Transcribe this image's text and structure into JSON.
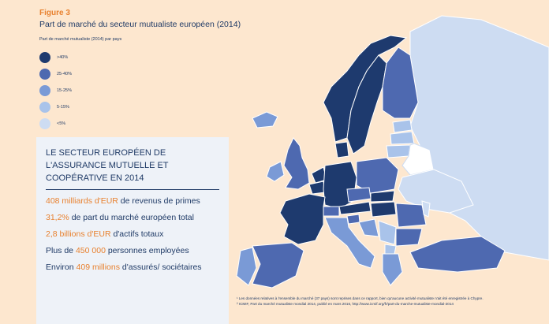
{
  "figure_label": "Figure 3",
  "title": "Part de marché du secteur mutualiste européen (2014)",
  "legend": {
    "title": "Part de marché mutualiste (2014) par pays",
    "items": [
      {
        "label": ">40%",
        "color": "#1e3a6e"
      },
      {
        "label": "25-40%",
        "color": "#4e69b0"
      },
      {
        "label": "15-25%",
        "color": "#7a9ad6"
      },
      {
        "label": "5-15%",
        "color": "#a9c3ea"
      },
      {
        "label": "<5%",
        "color": "#cddcf2"
      }
    ]
  },
  "box": {
    "title_lines": [
      "LE SECTEUR EUROPÉEN DE",
      "L'ASSURANCE MUTUELLE ET",
      "COOPÉRATIVE EN 2014"
    ],
    "stats": [
      {
        "highlight": "408 milliards d'EUR",
        "text": " de revenus de primes",
        "lead": ""
      },
      {
        "highlight": "31,2%",
        "text": " de part du marché européen total",
        "lead": ""
      },
      {
        "highlight": "2,8 billions d'EUR",
        "text": " d'actifs totaux",
        "lead": ""
      },
      {
        "lead": "Plus de ",
        "highlight": "450 000",
        "text": " personnes employées"
      },
      {
        "lead": "Environ ",
        "highlight": "409 millions",
        "text": " d'assurés/ sociétaires"
      }
    ]
  },
  "footnotes": [
    "¹  Les données relatives à l'ensemble du marché (37 pays) sont reprises dans ce rapport, bien qu'aucune activité mutualiste n'ait été enregistrée à Chypre.",
    "²  ICMIF, Part du marché mutualiste mondial 2014, publié en mars 2016, http://www.icmif.org/fr/part-du-marche-mutualiste-mondial-2014"
  ],
  "colors": {
    "background": "#fde7cf",
    "non_data": "#ffffff",
    "highlight": "#e8812f",
    "navy": "#1f3a66"
  }
}
